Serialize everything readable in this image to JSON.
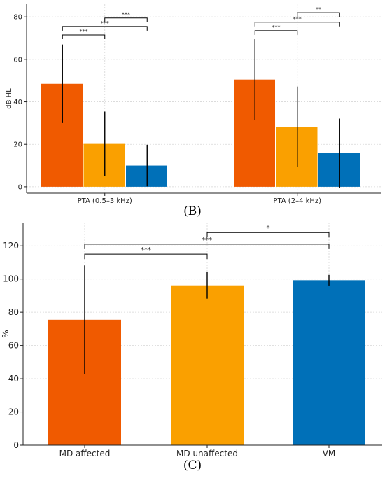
{
  "panel_labels": [
    "(B)",
    "(C)"
  ],
  "chart_data": [
    {
      "type": "bar",
      "title": "",
      "xlabel": "",
      "ylabel": "dB HL",
      "ylim": [
        -3,
        86
      ],
      "yticks": [
        0,
        20,
        40,
        60,
        80
      ],
      "categories": [
        "PTA (0.5–3 kHz)",
        "PTA (2–4 kHz)"
      ],
      "series": [
        {
          "color": "#F05A00",
          "values": [
            48.5,
            50.5
          ],
          "errors": [
            18.5,
            19
          ]
        },
        {
          "color": "#FAA000",
          "values": [
            20.2,
            28.2
          ],
          "errors": [
            15.2,
            19
          ]
        },
        {
          "color": "#0070B8",
          "values": [
            10,
            15.8
          ],
          "errors": [
            9.8,
            16.3
          ]
        }
      ],
      "grid": true,
      "significance": [
        {
          "group": 0,
          "from": 0,
          "to": 1,
          "y": 71.5,
          "label": "***"
        },
        {
          "group": 0,
          "from": 0,
          "to": 2,
          "y": 75.5,
          "label": "***"
        },
        {
          "group": 0,
          "from": 1,
          "to": 2,
          "y": 79.5,
          "label": "***"
        },
        {
          "group": 1,
          "from": 0,
          "to": 1,
          "y": 73.5,
          "label": "***"
        },
        {
          "group": 1,
          "from": 0,
          "to": 2,
          "y": 77.5,
          "label": "***"
        },
        {
          "group": 1,
          "from": 1,
          "to": 2,
          "y": 82,
          "label": "**"
        }
      ]
    },
    {
      "type": "bar",
      "title": "",
      "xlabel": "",
      "ylabel": "%",
      "ylim": [
        0,
        134
      ],
      "yticks": [
        0,
        20,
        40,
        60,
        80,
        100,
        120
      ],
      "categories": [
        "MD affected",
        "MD unaffected",
        "VM"
      ],
      "colors": [
        "#F05A00",
        "#FAA000",
        "#0070B8"
      ],
      "values": [
        75.5,
        96.2,
        99.3
      ],
      "errors": [
        32.7,
        8,
        3.2
      ],
      "grid": true,
      "significance": [
        {
          "from": 0,
          "to": 1,
          "y": 115,
          "label": "***"
        },
        {
          "from": 0,
          "to": 2,
          "y": 121,
          "label": "***"
        },
        {
          "from": 1,
          "to": 2,
          "y": 128,
          "label": "*"
        }
      ]
    }
  ]
}
